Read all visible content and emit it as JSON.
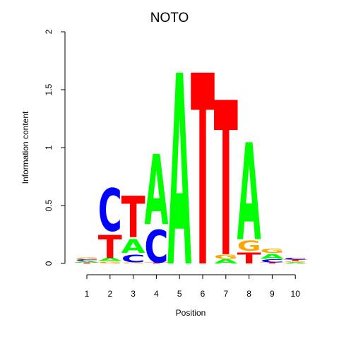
{
  "chart_data": {
    "type": "sequence-logo",
    "title": "NOTO",
    "xlabel": "Position",
    "ylabel": "Information content",
    "ylim": [
      0,
      2
    ],
    "yticks": [
      0,
      0.5,
      1,
      1.5,
      2
    ],
    "ytick_labels": [
      "0",
      "0.5",
      "1",
      "1.5",
      "2"
    ],
    "positions": [
      "1",
      "2",
      "3",
      "4",
      "5",
      "6",
      "7",
      "8",
      "9",
      "10"
    ],
    "colors": {
      "A": "#00ff00",
      "C": "#0000ff",
      "G": "#ffa500",
      "T": "#ff0000"
    },
    "stacks": [
      [
        {
          "letter": "T",
          "height": 0.01
        },
        {
          "letter": "A",
          "height": 0.012
        },
        {
          "letter": "C",
          "height": 0.016
        },
        {
          "letter": "G",
          "height": 0.02
        }
      ],
      [
        {
          "letter": "G",
          "height": 0.02
        },
        {
          "letter": "A",
          "height": 0.03
        },
        {
          "letter": "T",
          "height": 0.23
        },
        {
          "letter": "C",
          "height": 0.43
        }
      ],
      [
        {
          "letter": "G",
          "height": 0.01
        },
        {
          "letter": "C",
          "height": 0.08
        },
        {
          "letter": "A",
          "height": 0.14
        },
        {
          "letter": "T",
          "height": 0.42
        }
      ],
      [
        {
          "letter": "T",
          "height": 0.01
        },
        {
          "letter": "C",
          "height": 0.33
        },
        {
          "letter": "A",
          "height": 0.71
        }
      ],
      [
        {
          "letter": "A",
          "height": 1.93
        }
      ],
      [
        {
          "letter": "T",
          "height": 1.93
        }
      ],
      [
        {
          "letter": "A",
          "height": 0.04
        },
        {
          "letter": "G",
          "height": 0.04
        },
        {
          "letter": "T",
          "height": 1.56
        }
      ],
      [
        {
          "letter": "T",
          "height": 0.11
        },
        {
          "letter": "G",
          "height": 0.1
        },
        {
          "letter": "A",
          "height": 0.98
        }
      ],
      [
        {
          "letter": "T",
          "height": 0.01
        },
        {
          "letter": "C",
          "height": 0.03
        },
        {
          "letter": "A",
          "height": 0.05
        },
        {
          "letter": "G",
          "height": 0.04
        }
      ],
      [
        {
          "letter": "A",
          "height": 0.01
        },
        {
          "letter": "G",
          "height": 0.01
        },
        {
          "letter": "T",
          "height": 0.015
        },
        {
          "letter": "C",
          "height": 0.02
        }
      ]
    ]
  }
}
